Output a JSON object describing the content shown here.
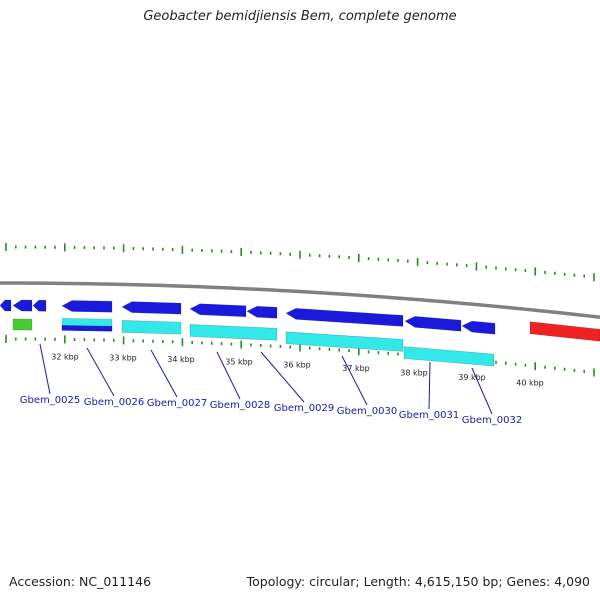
{
  "title": "Geobacter bemidjiensis Bem, complete genome",
  "footer": {
    "accession": "Accession: NC_011146",
    "summary": "Topology: circular; Length: 4,615,150 bp; Genes: 4,090"
  },
  "colors": {
    "background": "#ffffff",
    "backbone": "#808080",
    "gene": "#1a1add",
    "cds": "#33e8e8",
    "rna": "#44cc33",
    "highlight": "#ee2222",
    "tick": "#2b8a1f",
    "label": "#1a1aa8"
  },
  "scale": {
    "tick_labels": [
      "32 kbp",
      "33 kbp",
      "34 kbp",
      "35 kbp",
      "36 kbp",
      "37 kbp",
      "38 kbp",
      "39 kbp",
      "40 kbp"
    ]
  },
  "genes": [
    {
      "label": "Gbem_0025"
    },
    {
      "label": "Gbem_0026"
    },
    {
      "label": "Gbem_0027"
    },
    {
      "label": "Gbem_0028"
    },
    {
      "label": "Gbem_0029"
    },
    {
      "label": "Gbem_0030"
    },
    {
      "label": "Gbem_0031"
    },
    {
      "label": "Gbem_0032"
    }
  ]
}
